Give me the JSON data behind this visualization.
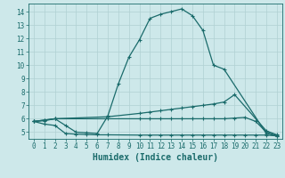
{
  "bg_color": "#cde8ea",
  "grid_color": "#b0d0d2",
  "line_color": "#1a6b6b",
  "line_width": 0.9,
  "marker": "+",
  "marker_size": 3,
  "marker_lw": 0.8,
  "xlabel": "Humidex (Indice chaleur)",
  "xlabel_fontsize": 7,
  "xlim": [
    -0.5,
    23.5
  ],
  "ylim": [
    4.5,
    14.6
  ],
  "yticks": [
    5,
    6,
    7,
    8,
    9,
    10,
    11,
    12,
    13,
    14
  ],
  "xticks": [
    0,
    1,
    2,
    3,
    4,
    5,
    6,
    7,
    8,
    9,
    10,
    11,
    12,
    13,
    14,
    15,
    16,
    17,
    18,
    19,
    20,
    21,
    22,
    23
  ],
  "curve1_x": [
    0,
    1,
    2,
    3,
    4,
    5,
    6,
    7,
    8,
    9,
    10,
    11,
    12,
    13,
    14,
    15,
    16,
    17,
    18,
    22,
    23
  ],
  "curve1_y": [
    5.8,
    5.9,
    6.0,
    5.5,
    5.0,
    4.95,
    4.9,
    6.2,
    8.6,
    10.6,
    11.9,
    13.5,
    13.8,
    14.0,
    14.2,
    13.7,
    12.6,
    10.0,
    9.7,
    4.9,
    4.7
  ],
  "curve2_x": [
    0,
    1,
    2,
    7,
    10,
    11,
    12,
    13,
    14,
    15,
    16,
    17,
    18,
    19,
    22,
    23
  ],
  "curve2_y": [
    5.8,
    5.9,
    6.0,
    6.15,
    6.4,
    6.5,
    6.6,
    6.7,
    6.8,
    6.9,
    7.0,
    7.1,
    7.25,
    7.8,
    5.1,
    4.8
  ],
  "curve3_x": [
    0,
    1,
    2,
    7,
    10,
    11,
    12,
    13,
    14,
    15,
    16,
    17,
    18,
    19,
    20,
    21,
    22,
    23
  ],
  "curve3_y": [
    5.8,
    5.85,
    6.0,
    6.0,
    6.0,
    6.0,
    6.0,
    6.0,
    6.0,
    6.0,
    6.0,
    6.0,
    6.0,
    6.05,
    6.1,
    5.8,
    5.0,
    4.75
  ],
  "curve4_x": [
    0,
    1,
    2,
    3,
    4,
    5,
    6,
    7,
    10,
    11,
    12,
    13,
    14,
    15,
    16,
    17,
    18,
    19,
    20,
    21,
    22,
    23
  ],
  "curve4_y": [
    5.8,
    5.6,
    5.5,
    4.9,
    4.85,
    4.82,
    4.8,
    4.8,
    4.78,
    4.78,
    4.78,
    4.78,
    4.78,
    4.78,
    4.78,
    4.78,
    4.78,
    4.78,
    4.78,
    4.78,
    4.78,
    4.72
  ]
}
